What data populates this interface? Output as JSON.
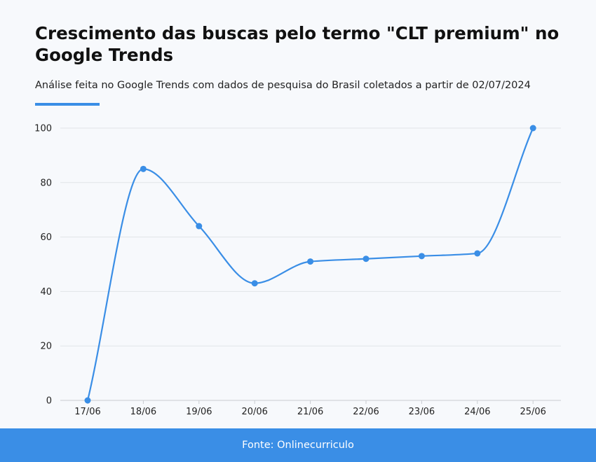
{
  "header": {
    "title": "Crescimento das buscas pelo termo \"CLT premium\" no Google Trends",
    "subtitle": "Análise feita no Google Trends com dados de pesquisa do Brasil coletados a partir de 02/07/2024"
  },
  "footer": {
    "source": "Fonte: Onlinecurriculo"
  },
  "colors": {
    "accent": "#3a8ee6",
    "grid": "#e1e4e8",
    "background": "#f7f9fc"
  },
  "chart_data": {
    "type": "line",
    "x": [
      "17/06",
      "18/06",
      "19/06",
      "20/06",
      "21/06",
      "22/06",
      "23/06",
      "24/06",
      "25/06"
    ],
    "series": [
      {
        "values": [
          0,
          85,
          64,
          43,
          51,
          52,
          53,
          54,
          100
        ]
      }
    ],
    "yticks": [
      0,
      20,
      40,
      60,
      80,
      100
    ],
    "ylim": [
      0,
      100
    ],
    "grid": true,
    "smooth": true,
    "markers": true
  }
}
